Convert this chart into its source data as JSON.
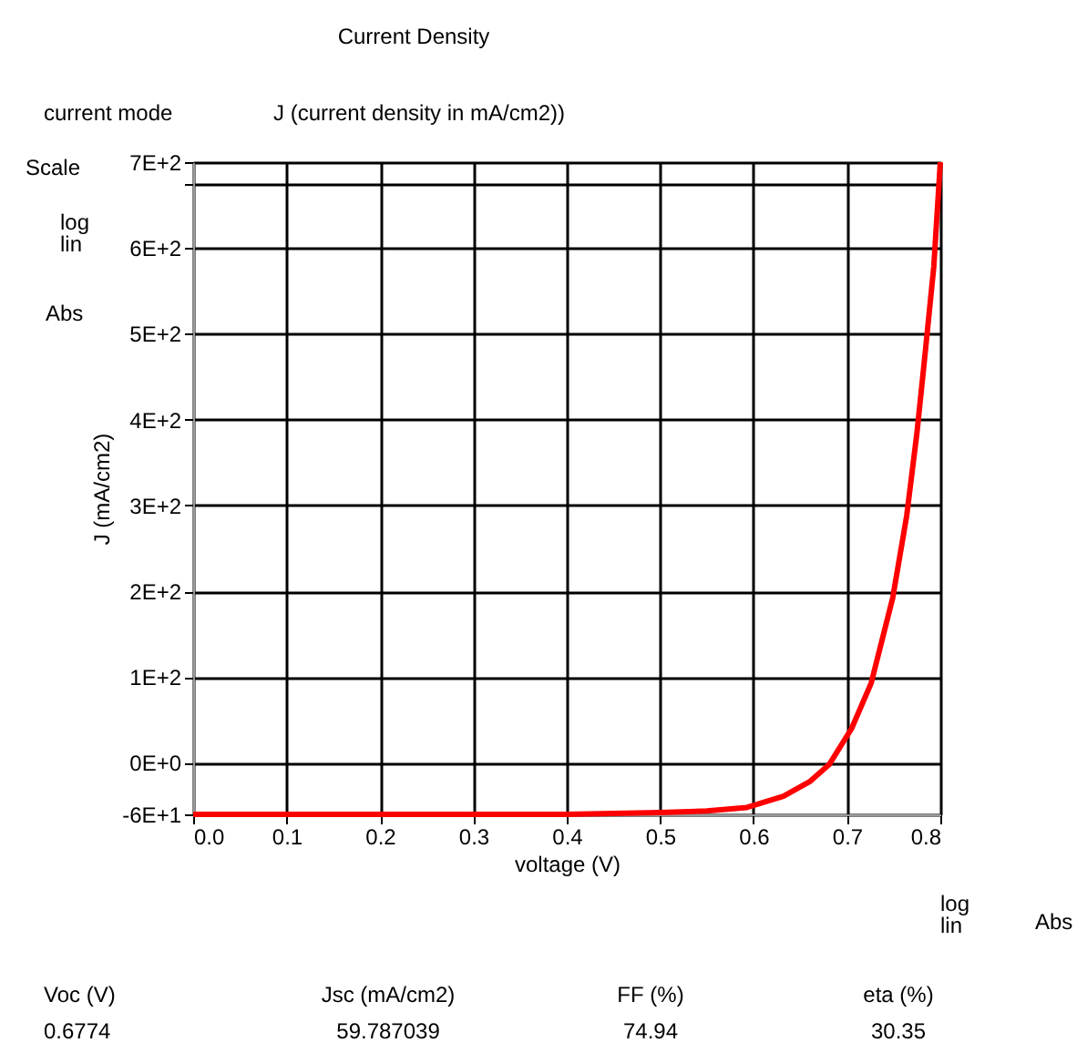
{
  "chart_data": {
    "type": "line",
    "title": "Current Density",
    "xlabel": "voltage (V)",
    "ylabel": "J (mA/cm2)",
    "x": [
      0.0,
      0.1,
      0.2,
      0.3,
      0.4,
      0.45,
      0.5,
      0.55,
      0.593,
      0.632,
      0.66,
      0.681,
      0.705,
      0.726,
      0.749,
      0.764,
      0.775,
      0.784,
      0.793,
      0.8
    ],
    "series": [
      {
        "color": "#ff0000",
        "values": [
          -60,
          -60,
          -60,
          -60,
          -60,
          -59,
          -58,
          -56,
          -52,
          -39,
          -22,
          -2,
          40,
          93,
          192,
          288,
          385,
          480,
          578,
          700
        ]
      }
    ],
    "xlim": [
      0,
      0.8
    ],
    "ylim": [
      -60,
      700
    ],
    "xticks": [
      {
        "value": 0,
        "label": "0.0"
      },
      0.1,
      0.2,
      0.3,
      0.4,
      0.5,
      0.6,
      0.7,
      0.8
    ],
    "yticks": [
      {
        "value": -60,
        "label": "-6E+1"
      },
      {
        "value": 0,
        "label": "0E+0"
      },
      {
        "value": 100,
        "label": "1E+2"
      },
      {
        "value": 200,
        "label": "2E+2"
      },
      {
        "value": 300,
        "label": "3E+2"
      },
      {
        "value": 400,
        "label": "4E+2"
      },
      {
        "value": 500,
        "label": "5E+2"
      },
      {
        "value": 600,
        "label": "6E+2"
      },
      {
        "value": 674,
        "label": null
      },
      {
        "value": 700,
        "label": "7E+2"
      }
    ],
    "grid": true,
    "marker": "none",
    "line_style": "solid",
    "annotations": [
      "current mode",
      "J (current density in mA/cm2))",
      "Scale",
      "log",
      "lin",
      "Abs",
      "log",
      "lin",
      "Abs",
      "Voc (V)",
      "0.6774",
      "Jsc (mA/cm2)",
      "59.787039",
      "FF  (%)",
      "74.94",
      "eta (%)",
      "30.35"
    ]
  }
}
